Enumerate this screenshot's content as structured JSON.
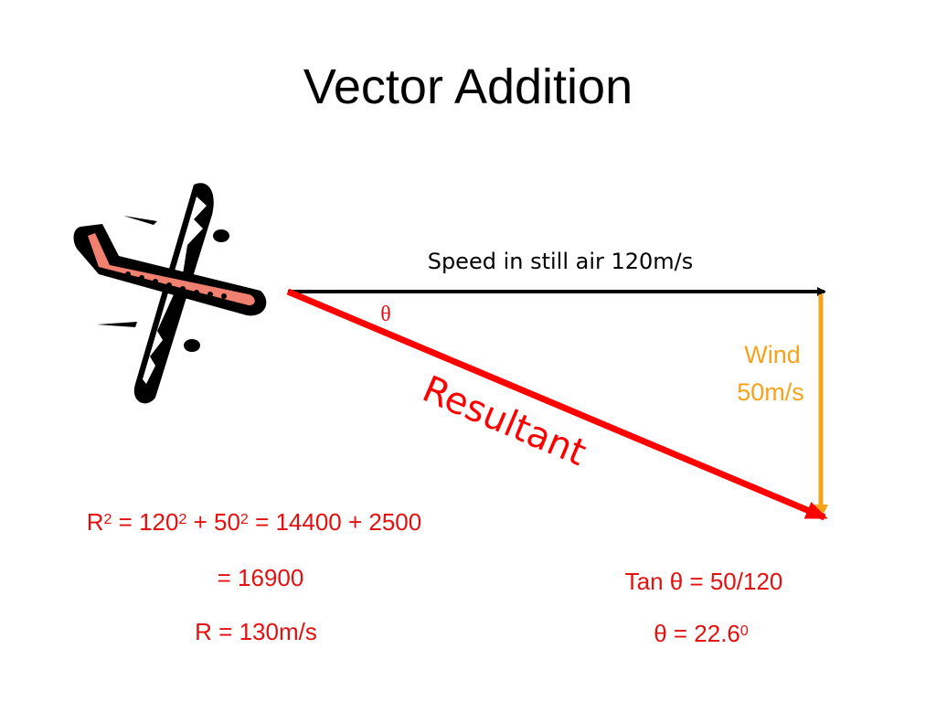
{
  "title": "Vector Addition",
  "labels": {
    "speed": "Speed in still air 120m/s",
    "theta": "θ",
    "wind": [
      "Wind",
      "50m/s"
    ],
    "resultant": "Resultant"
  },
  "equations": {
    "pythagoras": [
      [
        {
          "text": "R"
        },
        {
          "sup": "2"
        },
        {
          "text": " = 120"
        },
        {
          "sup": "2"
        },
        {
          "text": " + 50"
        },
        {
          "sup": "2"
        },
        {
          "text": " = 14400 + 2500"
        }
      ],
      [
        {
          "text": "= 16900"
        }
      ],
      [
        {
          "text": "R = 130m/s"
        }
      ]
    ],
    "angle": [
      [
        {
          "text": "Tan θ = 50/120"
        }
      ],
      [
        {
          "text": "θ = 22.6"
        },
        {
          "sup": "0"
        }
      ]
    ]
  }
}
